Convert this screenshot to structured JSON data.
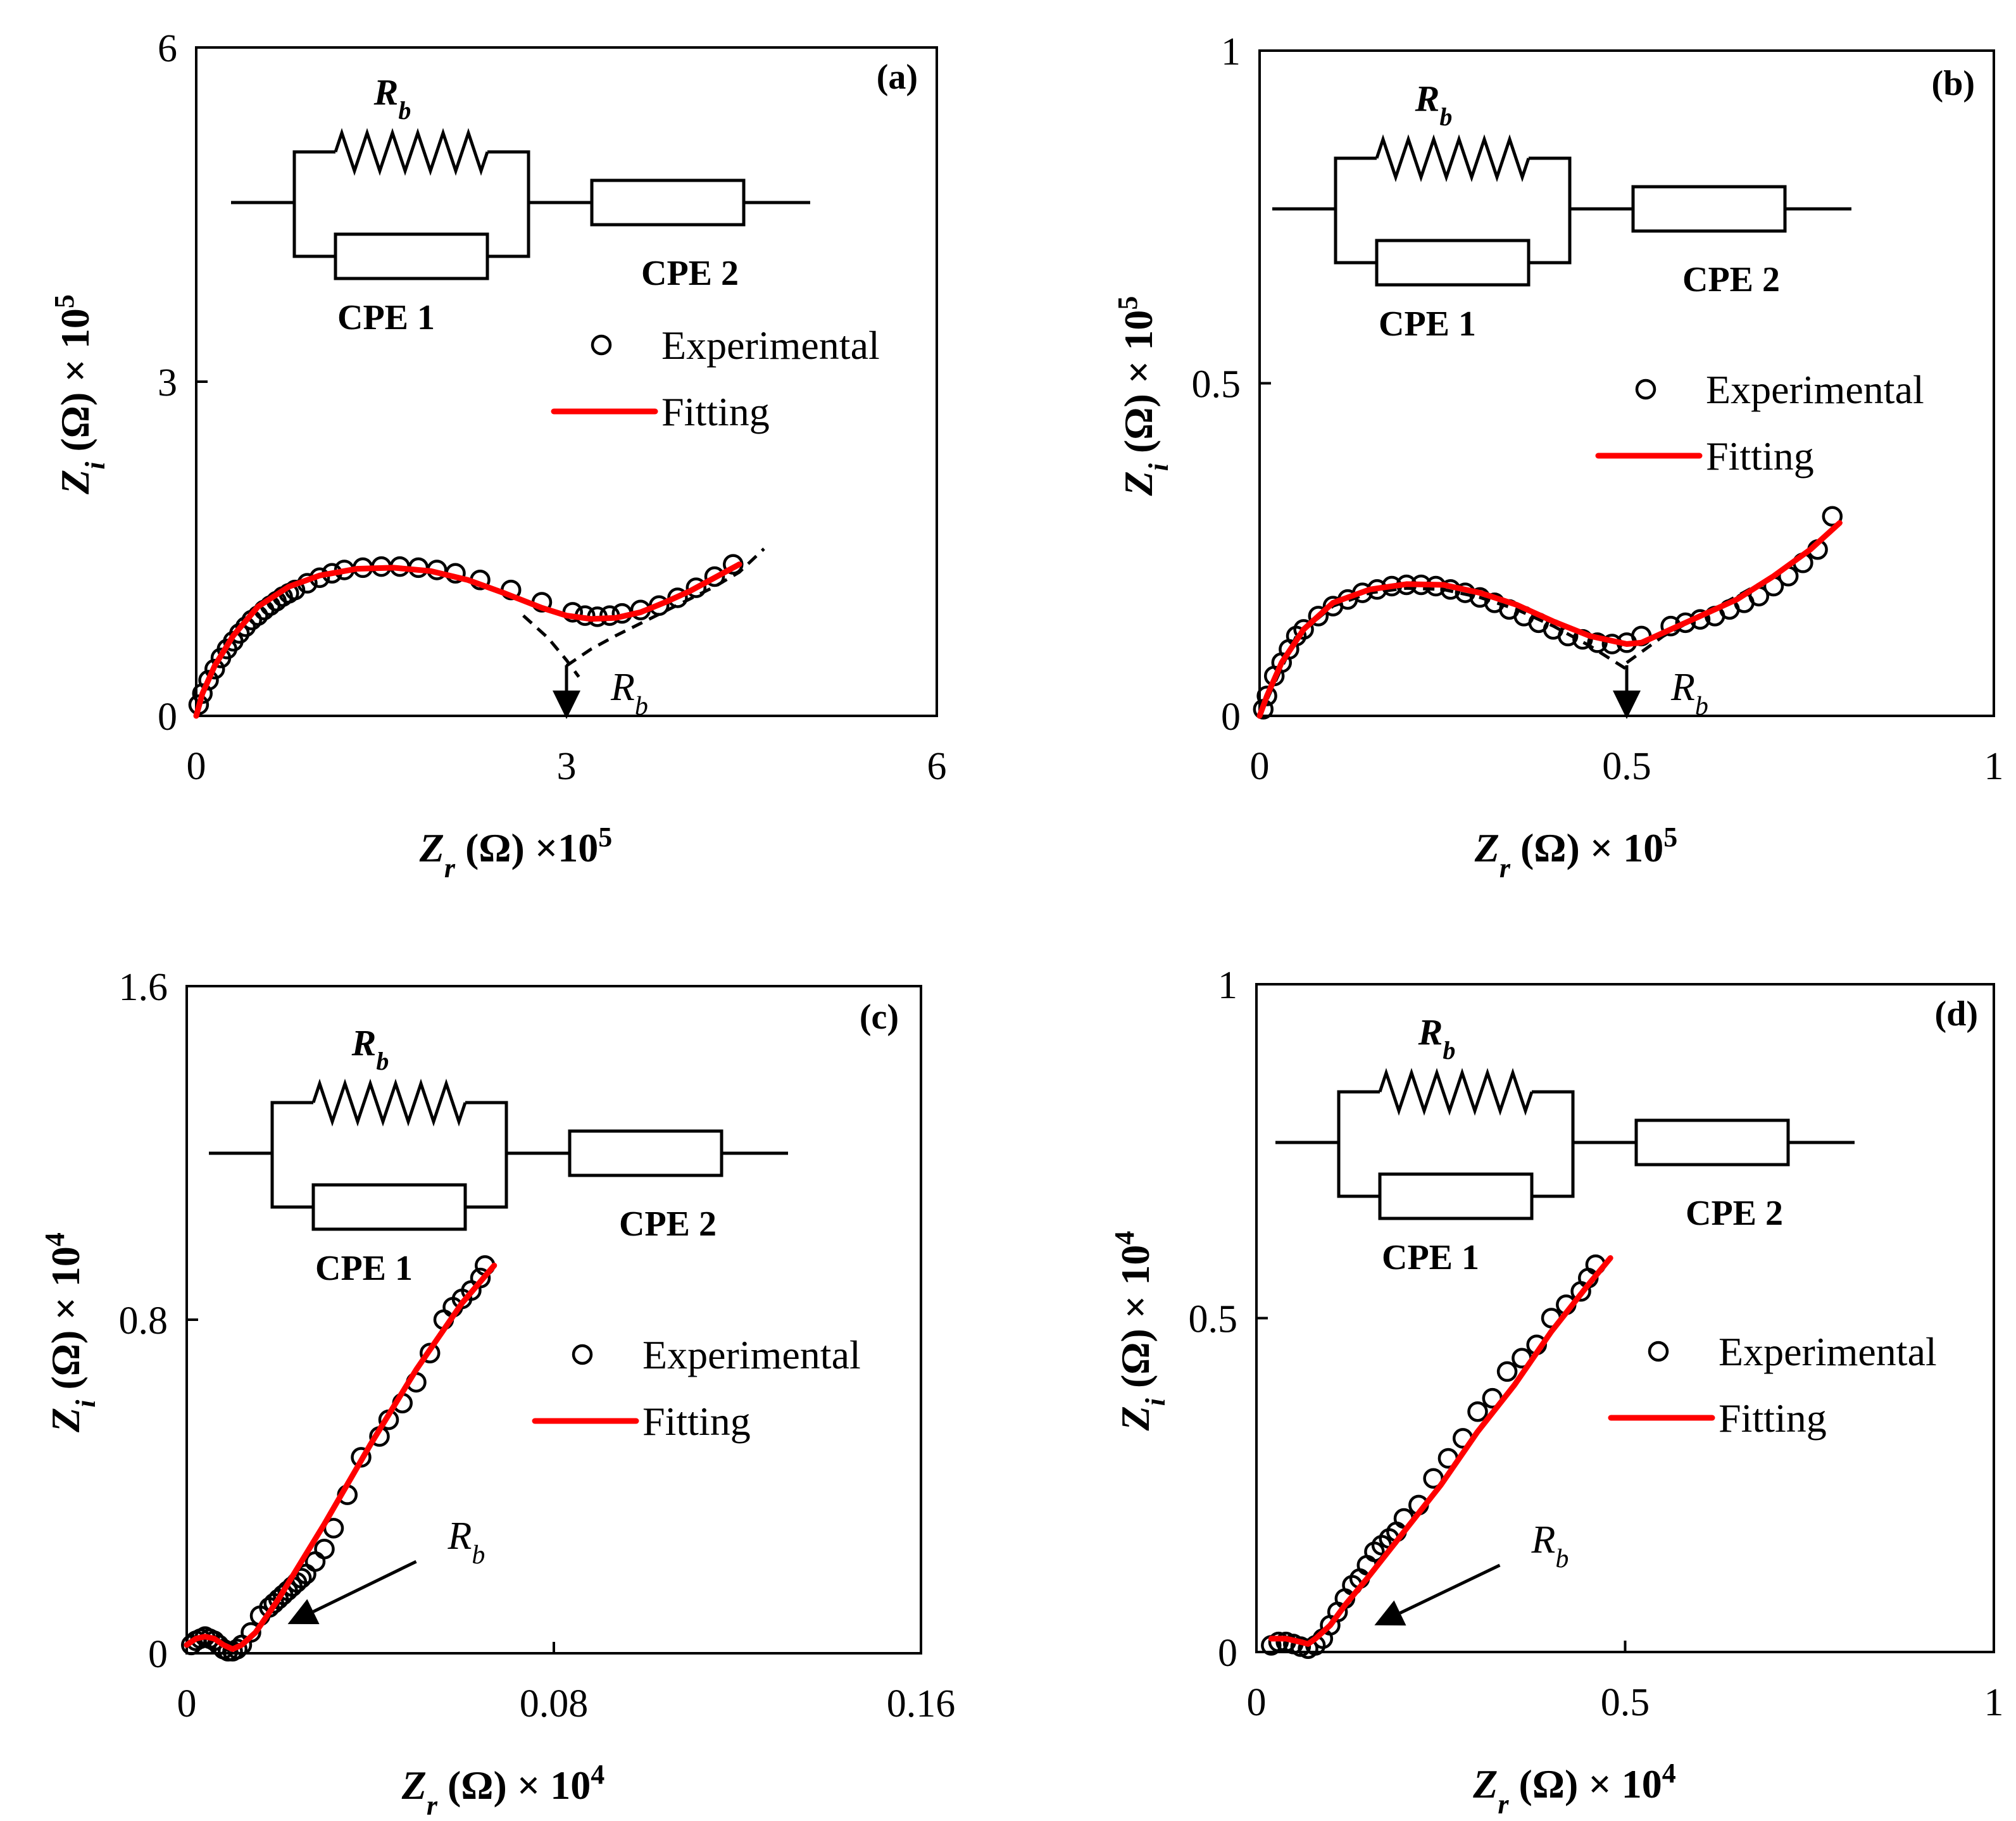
{
  "chart_data": [
    {
      "type": "scatter",
      "panel": "(a)",
      "xlabel": "Zr (Ω) ×10^5",
      "ylabel": "Zi (Ω) × 10^5",
      "xlabel_parts": {
        "main": "Z",
        "sub": "r",
        "rest": " (Ω) ×10",
        "sup": "5"
      },
      "ylabel_parts": {
        "main": "Z",
        "sub": "i",
        "rest": " (Ω) × 10",
        "sup": "5"
      },
      "xlim": [
        0,
        6
      ],
      "ylim": [
        0,
        6
      ],
      "xticks": [
        "0",
        "3",
        "6"
      ],
      "yticks": [
        "0",
        "3",
        "6"
      ],
      "xtick_values": [
        0,
        3,
        6
      ],
      "ytick_values": [
        0,
        3,
        6
      ],
      "legend": {
        "experimental": "Experimental",
        "fitting": "Fitting"
      },
      "circuit": {
        "resistor": "Rb",
        "resistor_main": "R",
        "resistor_sub": "b",
        "cpe1": "CPE 1",
        "cpe2": "CPE 2"
      },
      "annotation": {
        "main": "R",
        "sub": "b",
        "x": 3.0
      },
      "experimental": {
        "x": [
          0.02,
          0.05,
          0.1,
          0.15,
          0.2,
          0.25,
          0.3,
          0.35,
          0.4,
          0.45,
          0.5,
          0.55,
          0.6,
          0.65,
          0.7,
          0.75,
          0.8,
          0.9,
          1.0,
          1.1,
          1.2,
          1.35,
          1.5,
          1.65,
          1.8,
          1.95,
          2.1,
          2.3,
          2.55,
          2.8,
          3.05,
          3.15,
          3.25,
          3.35,
          3.45,
          3.6,
          3.75,
          3.9,
          4.05,
          4.2,
          4.35
        ],
        "y": [
          0.1,
          0.2,
          0.32,
          0.42,
          0.52,
          0.6,
          0.67,
          0.74,
          0.8,
          0.86,
          0.9,
          0.95,
          0.99,
          1.03,
          1.07,
          1.1,
          1.13,
          1.19,
          1.24,
          1.28,
          1.31,
          1.33,
          1.34,
          1.34,
          1.33,
          1.31,
          1.28,
          1.22,
          1.13,
          1.02,
          0.93,
          0.9,
          0.89,
          0.9,
          0.92,
          0.95,
          0.99,
          1.06,
          1.15,
          1.25,
          1.36
        ]
      },
      "fit": {
        "x": [
          0.0,
          0.05,
          0.15,
          0.3,
          0.5,
          0.75,
          1.0,
          1.3,
          1.6,
          1.9,
          2.2,
          2.5,
          2.8,
          3.0,
          3.2,
          3.4,
          3.6,
          3.8,
          4.0,
          4.2,
          4.4
        ],
        "y": [
          0.0,
          0.2,
          0.45,
          0.72,
          0.98,
          1.16,
          1.26,
          1.32,
          1.33,
          1.3,
          1.22,
          1.1,
          0.97,
          0.9,
          0.87,
          0.88,
          0.93,
          1.02,
          1.12,
          1.24,
          1.36
        ]
      },
      "dashed": [
        {
          "x": [
            2.65,
            2.85,
            3.0,
            3.1
          ],
          "y": [
            0.9,
            0.7,
            0.5,
            0.35
          ]
        },
        {
          "x": [
            3.0,
            3.2,
            3.4,
            3.6,
            3.8,
            4.0,
            4.2,
            4.4,
            4.6
          ],
          "y": [
            0.45,
            0.6,
            0.72,
            0.83,
            0.94,
            1.05,
            1.16,
            1.29,
            1.5
          ]
        }
      ]
    },
    {
      "type": "scatter",
      "panel": "(b)",
      "xlabel": "Zr (Ω) × 10^5",
      "ylabel": "Zi (Ω) × 10^5",
      "xlabel_parts": {
        "main": "Z",
        "sub": "r",
        "rest": " (Ω) × 10",
        "sup": "5"
      },
      "ylabel_parts": {
        "main": "Z",
        "sub": "i",
        "rest": " (Ω) × 10",
        "sup": "5"
      },
      "xlim": [
        0,
        1
      ],
      "ylim": [
        0,
        1
      ],
      "xticks": [
        "0",
        "0.5",
        "1"
      ],
      "yticks": [
        "0",
        "0.5",
        "1"
      ],
      "xtick_values": [
        0,
        0.5,
        1
      ],
      "ytick_values": [
        0,
        0.5,
        1
      ],
      "legend": {
        "experimental": "Experimental",
        "fitting": "Fitting"
      },
      "circuit": {
        "resistor": "Rb",
        "resistor_main": "R",
        "resistor_sub": "b",
        "cpe1": "CPE 1",
        "cpe2": "CPE 2"
      },
      "annotation": {
        "main": "R",
        "sub": "b",
        "x": 0.5
      },
      "experimental": {
        "x": [
          0.005,
          0.01,
          0.02,
          0.03,
          0.04,
          0.05,
          0.06,
          0.08,
          0.1,
          0.12,
          0.14,
          0.16,
          0.18,
          0.2,
          0.22,
          0.24,
          0.26,
          0.28,
          0.3,
          0.32,
          0.34,
          0.36,
          0.38,
          0.4,
          0.42,
          0.44,
          0.46,
          0.48,
          0.5,
          0.52,
          0.56,
          0.58,
          0.6,
          0.62,
          0.64,
          0.66,
          0.68,
          0.7,
          0.72,
          0.74,
          0.76,
          0.78
        ],
        "y": [
          0.01,
          0.03,
          0.06,
          0.08,
          0.1,
          0.12,
          0.13,
          0.15,
          0.165,
          0.175,
          0.185,
          0.19,
          0.195,
          0.197,
          0.197,
          0.195,
          0.19,
          0.185,
          0.178,
          0.17,
          0.16,
          0.15,
          0.14,
          0.13,
          0.12,
          0.115,
          0.11,
          0.108,
          0.11,
          0.12,
          0.135,
          0.14,
          0.145,
          0.15,
          0.16,
          0.17,
          0.18,
          0.195,
          0.21,
          0.23,
          0.25,
          0.3
        ]
      },
      "fit": {
        "x": [
          0.0,
          0.01,
          0.03,
          0.06,
          0.1,
          0.15,
          0.2,
          0.25,
          0.3,
          0.35,
          0.4,
          0.45,
          0.5,
          0.52,
          0.55,
          0.6,
          0.65,
          0.7,
          0.75,
          0.79
        ],
        "y": [
          0.0,
          0.03,
          0.08,
          0.13,
          0.17,
          0.19,
          0.198,
          0.197,
          0.185,
          0.167,
          0.142,
          0.12,
          0.108,
          0.11,
          0.125,
          0.15,
          0.175,
          0.21,
          0.25,
          0.29
        ]
      },
      "dashed": [
        {
          "x": [
            0.0,
            0.05,
            0.1,
            0.15,
            0.2,
            0.25,
            0.3,
            0.35,
            0.4,
            0.45,
            0.5
          ],
          "y": [
            0.0,
            0.12,
            0.165,
            0.185,
            0.192,
            0.19,
            0.178,
            0.16,
            0.135,
            0.105,
            0.07
          ]
        },
        {
          "x": [
            0.5,
            0.55,
            0.6,
            0.65,
            0.7,
            0.75,
            0.8
          ],
          "y": [
            0.08,
            0.12,
            0.15,
            0.18,
            0.21,
            0.25,
            0.3
          ]
        }
      ]
    },
    {
      "type": "scatter",
      "panel": "(c)",
      "xlabel": "Zr (Ω) × 10^4",
      "ylabel": "Zi (Ω) × 10^4",
      "xlabel_parts": {
        "main": "Z",
        "sub": "r",
        "rest": " (Ω) × 10",
        "sup": "4"
      },
      "ylabel_parts": {
        "main": "Z",
        "sub": "i",
        "rest": " (Ω) × 10",
        "sup": "4"
      },
      "xlim": [
        0,
        0.16
      ],
      "ylim": [
        0,
        1.6
      ],
      "xticks": [
        "0",
        "0.08",
        "0.16"
      ],
      "yticks": [
        "0",
        "0.8",
        "1.6"
      ],
      "xtick_values": [
        0,
        0.08,
        0.16
      ],
      "ytick_values": [
        0,
        0.8,
        1.6
      ],
      "legend": {
        "experimental": "Experimental",
        "fitting": "Fitting"
      },
      "circuit": {
        "resistor": "Rb",
        "resistor_main": "R",
        "resistor_sub": "b",
        "cpe1": "CPE 1",
        "cpe2": "CPE 2"
      },
      "annotation": {
        "main": "R",
        "sub": "b"
      },
      "experimental": {
        "x": [
          0.001,
          0.002,
          0.003,
          0.004,
          0.005,
          0.006,
          0.007,
          0.008,
          0.009,
          0.01,
          0.011,
          0.012,
          0.014,
          0.016,
          0.018,
          0.019,
          0.02,
          0.021,
          0.022,
          0.023,
          0.024,
          0.025,
          0.026,
          0.028,
          0.03,
          0.032,
          0.035,
          0.038,
          0.042,
          0.044,
          0.047,
          0.05,
          0.053,
          0.056,
          0.058,
          0.06,
          0.062,
          0.064,
          0.065
        ],
        "y": [
          0.02,
          0.03,
          0.035,
          0.04,
          0.035,
          0.03,
          0.02,
          0.01,
          0.005,
          0.005,
          0.01,
          0.02,
          0.05,
          0.09,
          0.11,
          0.12,
          0.13,
          0.14,
          0.15,
          0.16,
          0.17,
          0.18,
          0.19,
          0.22,
          0.25,
          0.3,
          0.38,
          0.47,
          0.52,
          0.56,
          0.6,
          0.65,
          0.72,
          0.8,
          0.83,
          0.85,
          0.87,
          0.9,
          0.93
        ]
      },
      "fit": {
        "x": [
          0.0,
          0.002,
          0.004,
          0.006,
          0.008,
          0.01,
          0.012,
          0.015,
          0.02,
          0.025,
          0.03,
          0.04,
          0.05,
          0.06,
          0.067
        ],
        "y": [
          0.02,
          0.035,
          0.04,
          0.035,
          0.02,
          0.01,
          0.02,
          0.05,
          0.13,
          0.22,
          0.31,
          0.5,
          0.68,
          0.84,
          0.93
        ]
      },
      "arrow": {
        "from": [
          0.05,
          0.22
        ],
        "to": [
          0.022,
          0.07
        ]
      }
    },
    {
      "type": "scatter",
      "panel": "(d)",
      "xlabel": "Zr (Ω) × 10^4",
      "ylabel": "Zi (Ω) × 10^4",
      "xlabel_parts": {
        "main": "Z",
        "sub": "r",
        "rest": " (Ω) × 10",
        "sup": "4"
      },
      "ylabel_parts": {
        "main": "Z",
        "sub": "i",
        "rest": " (Ω) × 10",
        "sup": "4"
      },
      "xlim": [
        0,
        1
      ],
      "ylim": [
        0,
        1
      ],
      "xticks": [
        "0",
        "0.5",
        "1"
      ],
      "yticks": [
        "0",
        "0.5",
        "1"
      ],
      "xtick_values": [
        0,
        0.5,
        1
      ],
      "ytick_values": [
        0,
        0.5,
        1
      ],
      "legend": {
        "experimental": "Experimental",
        "fitting": "Fitting"
      },
      "circuit": {
        "resistor": "Rb",
        "resistor_main": "R",
        "resistor_sub": "b",
        "cpe1": "CPE 1",
        "cpe2": "CPE 2"
      },
      "annotation": {
        "main": "R",
        "sub": "b"
      },
      "experimental": {
        "x": [
          0.02,
          0.03,
          0.04,
          0.05,
          0.06,
          0.07,
          0.08,
          0.09,
          0.1,
          0.11,
          0.12,
          0.13,
          0.14,
          0.15,
          0.16,
          0.17,
          0.18,
          0.19,
          0.2,
          0.22,
          0.24,
          0.26,
          0.28,
          0.3,
          0.32,
          0.34,
          0.36,
          0.38,
          0.4,
          0.42,
          0.44,
          0.45,
          0.46
        ],
        "y": [
          0.01,
          0.015,
          0.015,
          0.012,
          0.008,
          0.005,
          0.01,
          0.02,
          0.04,
          0.06,
          0.08,
          0.1,
          0.11,
          0.13,
          0.15,
          0.16,
          0.17,
          0.18,
          0.2,
          0.22,
          0.26,
          0.29,
          0.32,
          0.36,
          0.38,
          0.42,
          0.44,
          0.46,
          0.5,
          0.52,
          0.54,
          0.56,
          0.58
        ]
      },
      "fit": {
        "x": [
          0.02,
          0.04,
          0.06,
          0.07,
          0.08,
          0.1,
          0.12,
          0.15,
          0.2,
          0.25,
          0.3,
          0.35,
          0.4,
          0.45,
          0.48
        ],
        "y": [
          0.02,
          0.02,
          0.015,
          0.012,
          0.02,
          0.04,
          0.07,
          0.11,
          0.18,
          0.25,
          0.33,
          0.4,
          0.48,
          0.55,
          0.59
        ]
      },
      "arrow": {
        "from": [
          0.33,
          0.13
        ],
        "to": [
          0.16,
          0.04
        ]
      }
    }
  ]
}
